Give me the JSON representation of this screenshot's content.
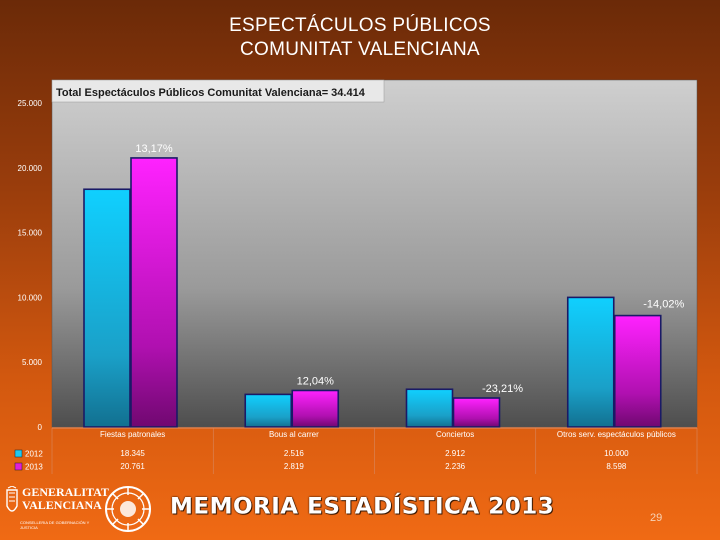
{
  "header": {
    "title_line1": "ESPECTÁCULOS PÚBLICOS",
    "title_line2": "COMUNITAT VALENCIANA"
  },
  "chart_data": {
    "type": "bar",
    "title": "Total Espectáculos Públicos Comunitat Valenciana= 34.414",
    "categories": [
      "Fiestas patronales",
      "Bous al carrer",
      "Conciertos",
      "Otros serv. espectáculos públicos"
    ],
    "series": [
      {
        "name": "2012",
        "values": [
          18345,
          2516,
          2912,
          10000
        ],
        "labels": [
          "18.345",
          "2.516",
          "2.912",
          "10.000"
        ],
        "color": "#1ec8f0"
      },
      {
        "name": "2013",
        "values": [
          20761,
          2819,
          2236,
          8598
        ],
        "labels": [
          "20.761",
          "2.819",
          "2.236",
          "8.598"
        ],
        "color": "#e020d8"
      }
    ],
    "annotations": [
      "13,17%",
      "12,04%",
      "-23,21%",
      "-14,02%"
    ],
    "ylim": [
      0,
      25000
    ],
    "yticks": [
      0,
      5000,
      10000,
      15000,
      20000,
      25000
    ],
    "ytick_labels": [
      "0",
      "5.000",
      "10.000",
      "15.000",
      "20.000",
      "25.000"
    ],
    "grid": false,
    "legend": "bottom-left table"
  },
  "footer": {
    "logo_text_1": "GENERALITAT",
    "logo_text_2": "VALENCIANA",
    "logo_sub": "CONSELLERIA DE GOBERNACIÓN Y JUSTICIA",
    "memoria": "MEMORIA ESTADÍSTICA 2013",
    "page_number": "29"
  }
}
